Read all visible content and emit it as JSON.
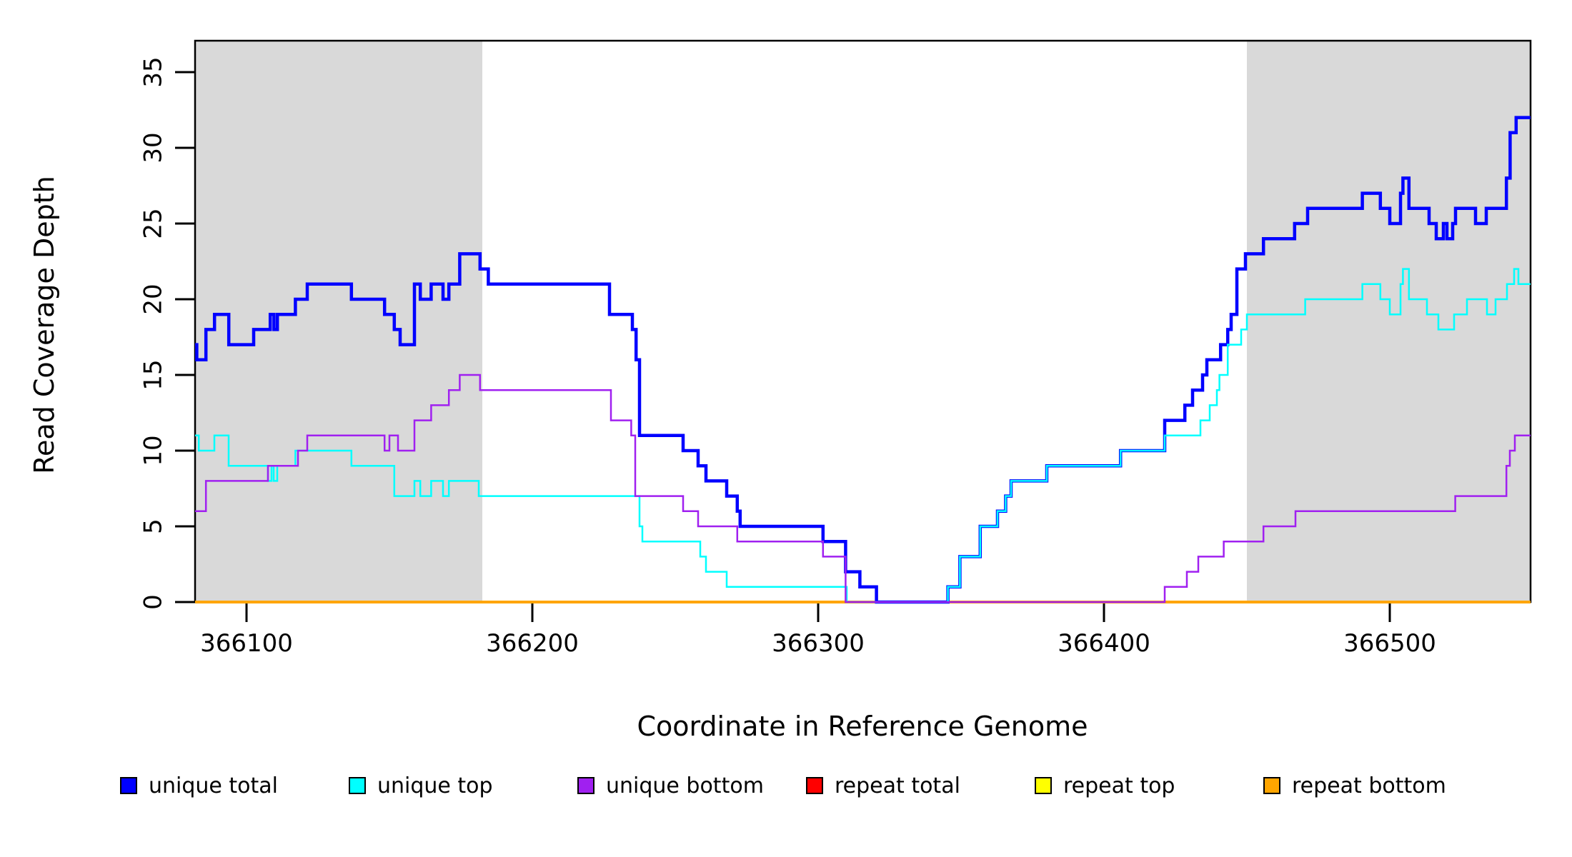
{
  "figure": {
    "x_axis_title": "Coordinate in Reference Genome",
    "y_axis_title": "Read Coverage Depth"
  },
  "legend": {
    "items": [
      {
        "label": "unique total",
        "color": "#0000FF"
      },
      {
        "label": "unique top",
        "color": "#00FFFF"
      },
      {
        "label": "unique bottom",
        "color": "#A020F0"
      },
      {
        "label": "repeat total",
        "color": "#FF0000"
      },
      {
        "label": "repeat top",
        "color": "#FFFF00"
      },
      {
        "label": "repeat bottom",
        "color": "#FFA500"
      }
    ]
  },
  "chart_data": {
    "type": "line",
    "step": true,
    "title": "",
    "xlabel": "Coordinate in Reference Genome",
    "ylabel": "Read Coverage Depth",
    "xlim": [
      366082,
      366549.25
    ],
    "ylim": [
      0,
      37.1
    ],
    "x_ticks": [
      366100,
      366200,
      366300,
      366400,
      366500
    ],
    "y_ticks": [
      0,
      5,
      10,
      15,
      20,
      25,
      30,
      35
    ],
    "grid": false,
    "legend_position": "bottom",
    "axis_color": "#000000",
    "shaded_regions": [
      {
        "x0": 366082,
        "x1": 366182.5,
        "color": "#D9D9D9"
      },
      {
        "x0": 366450,
        "x1": 366549.25,
        "color": "#D9D9D9"
      }
    ],
    "draw_order": [
      3,
      4,
      5,
      0,
      1,
      2
    ],
    "series": [
      {
        "name": "unique total",
        "color": "#0000FF",
        "width": 4.5,
        "points": [
          [
            366082,
            17
          ],
          [
            366082.6,
            16
          ],
          [
            366085.8,
            18
          ],
          [
            366088.8,
            19
          ],
          [
            366093.8,
            17
          ],
          [
            366102.5,
            18
          ],
          [
            366108.3,
            19
          ],
          [
            366109.6,
            18
          ],
          [
            366110.8,
            19
          ],
          [
            366117.1,
            20
          ],
          [
            366121.25,
            21
          ],
          [
            366136.7,
            20
          ],
          [
            366148.3,
            19
          ],
          [
            366151.7,
            18
          ],
          [
            366153.75,
            17
          ],
          [
            366158.75,
            21
          ],
          [
            366160.8,
            20
          ],
          [
            366164.6,
            21
          ],
          [
            366168.75,
            20
          ],
          [
            366170.8,
            21
          ],
          [
            366174.6,
            23
          ],
          [
            366181.7,
            22
          ],
          [
            366184.6,
            21
          ],
          [
            366227,
            19
          ],
          [
            366235,
            18
          ],
          [
            366236.3,
            16
          ],
          [
            366237.5,
            11
          ],
          [
            366252.75,
            10
          ],
          [
            366258,
            9
          ],
          [
            366260.75,
            8
          ],
          [
            366268,
            7
          ],
          [
            366271.7,
            6
          ],
          [
            366272.7,
            5
          ],
          [
            366301.7,
            4
          ],
          [
            366309.6,
            2
          ],
          [
            366314.6,
            1
          ],
          [
            366320.4,
            0
          ],
          [
            366345.4,
            1
          ],
          [
            366349.6,
            3
          ],
          [
            366356.7,
            5
          ],
          [
            366362.75,
            6
          ],
          [
            366365.6,
            7
          ],
          [
            366367.5,
            8
          ],
          [
            366380,
            9
          ],
          [
            366405.8,
            10
          ],
          [
            366421.25,
            12
          ],
          [
            366428.3,
            13
          ],
          [
            366431,
            14
          ],
          [
            366434.5,
            15
          ],
          [
            366436,
            16
          ],
          [
            366440.8,
            17
          ],
          [
            366443.3,
            18
          ],
          [
            366444.5,
            19
          ],
          [
            366446.5,
            22
          ],
          [
            366449.5,
            23
          ],
          [
            366455.8,
            24
          ],
          [
            366466.7,
            25
          ],
          [
            366471.25,
            26
          ],
          [
            366490.4,
            27
          ],
          [
            366496.7,
            26
          ],
          [
            366500,
            25
          ],
          [
            366503.75,
            27
          ],
          [
            366504.6,
            28
          ],
          [
            366506.7,
            26
          ],
          [
            366513.75,
            25
          ],
          [
            366516.25,
            24
          ],
          [
            366518.75,
            25
          ],
          [
            366520,
            24
          ],
          [
            366522,
            25
          ],
          [
            366523,
            26
          ],
          [
            366530,
            25
          ],
          [
            366533.75,
            26
          ],
          [
            366540.8,
            28
          ],
          [
            366542.1,
            31
          ],
          [
            366544.2,
            32
          ],
          [
            366549.25,
            32
          ]
        ]
      },
      {
        "name": "unique top",
        "color": "#00FFFF",
        "width": 2.5,
        "points": [
          [
            366082,
            11
          ],
          [
            366083.3,
            10
          ],
          [
            366088.75,
            11
          ],
          [
            366093.75,
            9
          ],
          [
            366107.5,
            8
          ],
          [
            366108.75,
            9
          ],
          [
            366109.5,
            8
          ],
          [
            366110.75,
            9
          ],
          [
            366117.1,
            10
          ],
          [
            366136.7,
            9
          ],
          [
            366151.7,
            7
          ],
          [
            366158.75,
            8
          ],
          [
            366160.8,
            7
          ],
          [
            366164.6,
            8
          ],
          [
            366168.75,
            7
          ],
          [
            366170.8,
            8
          ],
          [
            366181.25,
            7
          ],
          [
            366237.5,
            5
          ],
          [
            366238.5,
            4
          ],
          [
            366258.75,
            3
          ],
          [
            366260.75,
            2
          ],
          [
            366268,
            1
          ],
          [
            366310,
            0
          ],
          [
            366345.4,
            1
          ],
          [
            366349.6,
            3
          ],
          [
            366356.7,
            5
          ],
          [
            366362.75,
            6
          ],
          [
            366365.6,
            7
          ],
          [
            366367.5,
            8
          ],
          [
            366380,
            9
          ],
          [
            366405.8,
            10
          ],
          [
            366421.25,
            11
          ],
          [
            366433.75,
            12
          ],
          [
            366437,
            13
          ],
          [
            366439.5,
            14
          ],
          [
            366440.4,
            15
          ],
          [
            366443.3,
            17
          ],
          [
            366448,
            18
          ],
          [
            366450,
            19
          ],
          [
            366470.4,
            20
          ],
          [
            366490.4,
            21
          ],
          [
            366496.7,
            20
          ],
          [
            366500,
            19
          ],
          [
            366503.75,
            21
          ],
          [
            366504.6,
            22
          ],
          [
            366506.7,
            20
          ],
          [
            366513,
            19
          ],
          [
            366517,
            18
          ],
          [
            366522.5,
            19
          ],
          [
            366527,
            20
          ],
          [
            366534,
            19
          ],
          [
            366537,
            20
          ],
          [
            366541,
            21
          ],
          [
            366543.5,
            22
          ],
          [
            366545,
            21
          ],
          [
            366549.25,
            21
          ]
        ]
      },
      {
        "name": "unique bottom",
        "color": "#A020F0",
        "width": 2.5,
        "points": [
          [
            366082,
            6
          ],
          [
            366085.8,
            8
          ],
          [
            366107.5,
            9
          ],
          [
            366118,
            10
          ],
          [
            366121.25,
            11
          ],
          [
            366148.3,
            10
          ],
          [
            366150,
            11
          ],
          [
            366153,
            10
          ],
          [
            366158.75,
            12
          ],
          [
            366164.6,
            13
          ],
          [
            366170.8,
            14
          ],
          [
            366174.6,
            15
          ],
          [
            366181.7,
            14
          ],
          [
            366227.5,
            12
          ],
          [
            366234.6,
            11
          ],
          [
            366236,
            7
          ],
          [
            366252.75,
            6
          ],
          [
            366258,
            5
          ],
          [
            366271.7,
            4
          ],
          [
            366301.7,
            3
          ],
          [
            366309.6,
            0
          ],
          [
            366421.25,
            1
          ],
          [
            366429,
            2
          ],
          [
            366433,
            3
          ],
          [
            366441.9,
            4
          ],
          [
            366455.8,
            5
          ],
          [
            366467,
            6
          ],
          [
            366522.9,
            7
          ],
          [
            366540.8,
            9
          ],
          [
            366542,
            10
          ],
          [
            366543.75,
            11
          ],
          [
            366549.25,
            11
          ]
        ]
      },
      {
        "name": "repeat total",
        "color": "#FF0000",
        "width": 2,
        "points": [
          [
            366082,
            0
          ],
          [
            366549.25,
            0
          ]
        ]
      },
      {
        "name": "repeat top",
        "color": "#FFFF00",
        "width": 2,
        "points": [
          [
            366082,
            0
          ],
          [
            366549.25,
            0
          ]
        ]
      },
      {
        "name": "repeat bottom",
        "color": "#FFA500",
        "width": 4,
        "points": [
          [
            366082,
            0
          ],
          [
            366549.25,
            0
          ]
        ]
      }
    ]
  }
}
